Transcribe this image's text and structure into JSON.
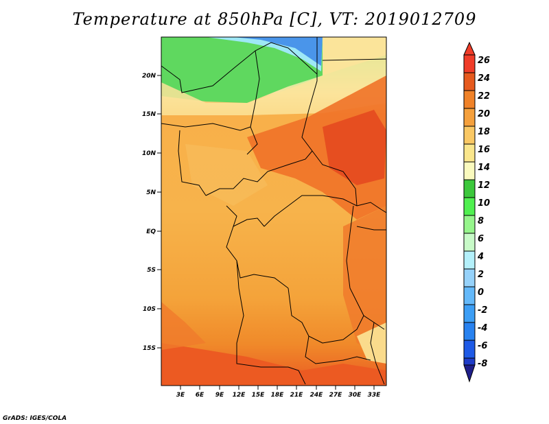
{
  "title": "Temperature at 850hPa [C], VT: 2019012709",
  "credit": "GrADS: IGES/COLA",
  "map": {
    "lon_labels": [
      "3E",
      "6E",
      "9E",
      "12E",
      "15E",
      "18E",
      "21E",
      "24E",
      "27E",
      "30E",
      "33E"
    ],
    "lat_labels": [
      "20N",
      "15N",
      "10N",
      "5N",
      "EQ",
      "5S",
      "10S",
      "15S"
    ]
  },
  "colorbar": {
    "labels": [
      "26",
      "24",
      "22",
      "20",
      "18",
      "16",
      "14",
      "12",
      "10",
      "8",
      "6",
      "4",
      "2",
      "0",
      "-2",
      "-4",
      "-6",
      "-8"
    ],
    "colors": [
      "#e0dcf5",
      "#1e1e8a",
      "#1e3cc8",
      "#1e5ae6",
      "#2882f0",
      "#3c9ef5",
      "#64b9fa",
      "#96d2fa",
      "#b4f0fa",
      "#c8fac8",
      "#96f58c",
      "#50f050",
      "#3cc83c",
      "#fafabe",
      "#fae68c",
      "#fac864",
      "#f5a03c",
      "#f08228",
      "#e65a1e",
      "#f03c28",
      "#f03c28"
    ]
  }
}
